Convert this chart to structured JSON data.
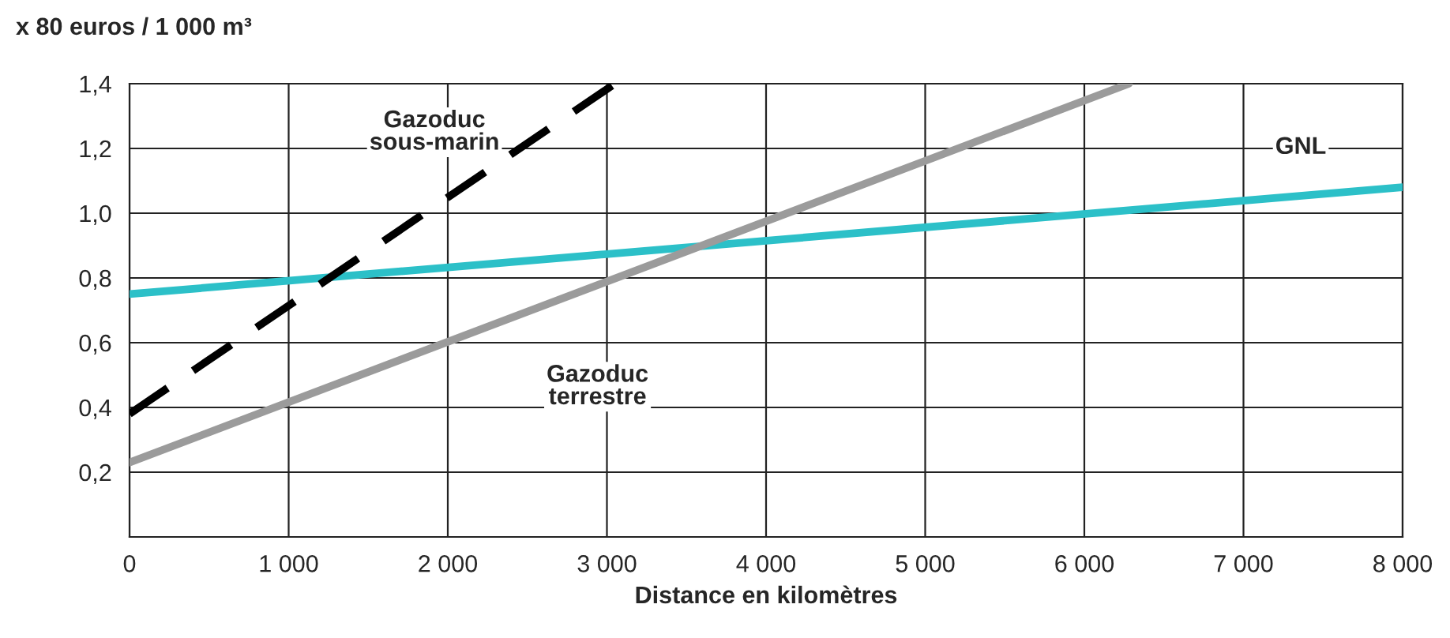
{
  "chart_data": {
    "type": "line",
    "ylabel": "x 80 euros / 1 000 m³",
    "xlabel": "Distance en kilomètres",
    "xlim": [
      0,
      8000
    ],
    "ylim": [
      0,
      1.4
    ],
    "xticks": [
      0,
      {
        "value": 1000,
        "label": "1 000"
      },
      {
        "value": 2000,
        "label": "2 000"
      },
      {
        "value": 3000,
        "label": "3 000"
      },
      {
        "value": 4000,
        "label": "4 000"
      },
      {
        "value": 5000,
        "label": "5 000"
      },
      {
        "value": 6000,
        "label": "6 000"
      },
      {
        "value": 7000,
        "label": "7 000"
      },
      {
        "value": 8000,
        "label": "8 000"
      }
    ],
    "yticks": [
      {
        "value": 0.2,
        "label": "0,2"
      },
      {
        "value": 0.4,
        "label": "0,4"
      },
      {
        "value": 0.6,
        "label": "0,6"
      },
      {
        "value": 0.8,
        "label": "0,8"
      },
      {
        "value": 1.0,
        "label": "1,0"
      },
      {
        "value": 1.2,
        "label": "1,2"
      },
      {
        "value": 1.4,
        "label": "1,4"
      }
    ],
    "grid": true,
    "legend": false,
    "marker": "none",
    "series": [
      {
        "name": "GNL",
        "color": "#2cc0c8",
        "x": [
          0,
          8000
        ],
        "values": [
          0.75,
          1.08
        ],
        "line_style": "solid"
      },
      {
        "name": "Gazoduc\nsous-marin",
        "color": "#000000",
        "x": [
          0,
          3050
        ],
        "values": [
          0.38,
          1.4
        ],
        "line_style": "dashed"
      },
      {
        "name": "Gazoduc\nterrestre",
        "color": "#9b9b9b",
        "x": [
          0,
          6280
        ],
        "values": [
          0.23,
          1.4
        ],
        "line_style": "solid"
      }
    ]
  }
}
